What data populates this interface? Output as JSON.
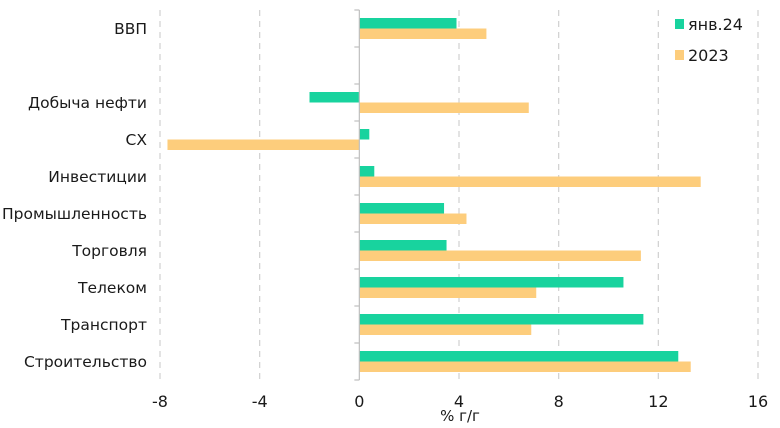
{
  "chart_data": {
    "type": "bar",
    "orientation": "horizontal",
    "title": "",
    "xlabel": "% г/г",
    "ylabel": "",
    "xlim": [
      -8,
      16
    ],
    "xticks": [
      -8,
      -4,
      0,
      4,
      8,
      12,
      16
    ],
    "xtick_labels": [
      "-8",
      "-4",
      "0",
      "4",
      "8",
      "12",
      "16"
    ],
    "grid": "vertical dashed",
    "legend_position": "top-right",
    "categories": [
      "ВВП",
      "",
      "Добыча нефти",
      "СХ",
      "Инвестиции",
      "Промышленность",
      "Торговля",
      "Телеком",
      "Транспорт",
      "Строительство"
    ],
    "series": [
      {
        "name": "янв.24",
        "color": "#18d39e",
        "values": [
          3.9,
          null,
          -2.0,
          0.4,
          0.6,
          3.4,
          3.5,
          10.6,
          11.4,
          12.8
        ]
      },
      {
        "name": "2023",
        "color": "#fdcd7c",
        "values": [
          5.1,
          null,
          6.8,
          -7.7,
          13.7,
          4.3,
          11.3,
          7.1,
          6.9,
          13.3
        ]
      }
    ]
  }
}
